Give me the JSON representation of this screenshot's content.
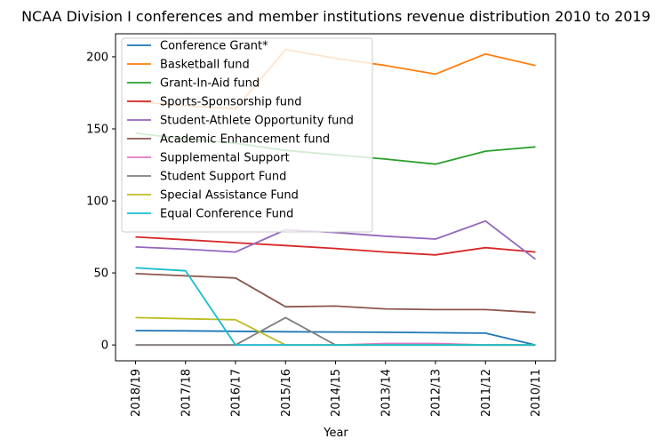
{
  "chart_data": {
    "type": "line",
    "title": "NCAA Division I conferences and member institutions revenue distribution 2010 to 2019",
    "xlabel": "Year",
    "ylabel": "",
    "categories": [
      "2018/19",
      "2017/18",
      "2016/17",
      "2015/16",
      "2014/15",
      "2013/14",
      "2012/13",
      "2011/12",
      "2010/11"
    ],
    "ylim": [
      -11,
      216
    ],
    "yticks": [
      0,
      50,
      100,
      150,
      200
    ],
    "grid": false,
    "legend_position": "top-left",
    "series": [
      {
        "name": "Conference Grant*",
        "color": "#1f77b4",
        "values": [
          10,
          9.8,
          9.5,
          9.2,
          9,
          8.8,
          8.5,
          8.2,
          0
        ]
      },
      {
        "name": "Basketball fund",
        "color": "#ff7f0e",
        "values": [
          169,
          166,
          164,
          205,
          199,
          194,
          188,
          202,
          194
        ]
      },
      {
        "name": "Grant-In-Aid fund",
        "color": "#2ca02c",
        "values": [
          147,
          143,
          140,
          135,
          132,
          129,
          125.5,
          134.5,
          137.5
        ]
      },
      {
        "name": "Sports-Sponsorship fund",
        "color": "#d62728",
        "values": [
          75,
          73,
          71,
          69,
          67,
          64.5,
          62.5,
          67.5,
          64.5
        ]
      },
      {
        "name": "Student-Athlete Opportunity fund",
        "color": "#9467bd",
        "values": [
          68,
          66.5,
          64.5,
          80,
          78,
          75.5,
          73.5,
          86,
          59.5
        ]
      },
      {
        "name": "Academic Enhancement fund",
        "color": "#8c564b",
        "values": [
          49.5,
          48,
          46.5,
          26.5,
          27,
          25,
          24.5,
          24.5,
          22.5
        ]
      },
      {
        "name": "Supplemental Support",
        "color": "#e377c2",
        "values": [
          0,
          0,
          0,
          0,
          0,
          1,
          1,
          0,
          0
        ]
      },
      {
        "name": "Student Support Fund",
        "color": "#7f7f7f",
        "values": [
          0,
          0,
          0,
          19,
          0,
          0,
          0,
          0,
          0
        ]
      },
      {
        "name": "Special Assistance Fund",
        "color": "#bcbd22",
        "values": [
          19,
          18.2,
          17.5,
          0,
          0,
          0,
          0,
          0,
          0
        ]
      },
      {
        "name": "Equal Conference Fund",
        "color": "#17becf",
        "values": [
          53.5,
          51.5,
          0,
          0,
          0,
          0,
          0,
          0,
          0
        ]
      }
    ]
  }
}
